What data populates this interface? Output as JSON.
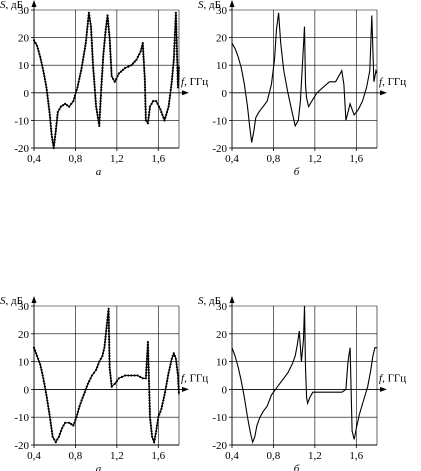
{
  "chart_data": [
    {
      "type": "line",
      "panel_label": "а",
      "ylabel_symbol": "S",
      "ylabel_unit": ", дБ",
      "xlabel_symbol": "f",
      "xlabel_unit": ", ГГц",
      "xlim": [
        0.4,
        1.8
      ],
      "ylim": [
        -20,
        30
      ],
      "xticks": [
        "0,4",
        "0,8",
        "1,2",
        "1,6"
      ],
      "yticks": [
        "30",
        "20",
        "10",
        "0",
        "-10",
        "-20"
      ],
      "grid": true,
      "markers": true,
      "series": [
        {
          "x": [
            0.4,
            0.43,
            0.46,
            0.49,
            0.52,
            0.55,
            0.57,
            0.59,
            0.61,
            0.63,
            0.66,
            0.7,
            0.74,
            0.78,
            0.82,
            0.86,
            0.9,
            0.93,
            0.95,
            0.97,
            1.0,
            1.03,
            1.05,
            1.07,
            1.09,
            1.11,
            1.13,
            1.15,
            1.18,
            1.22,
            1.28,
            1.34,
            1.39,
            1.43,
            1.45,
            1.47,
            1.48,
            1.5,
            1.52,
            1.55,
            1.58,
            1.62,
            1.66,
            1.7,
            1.73,
            1.75,
            1.77,
            1.79,
            1.8
          ],
          "y": [
            19,
            17,
            13,
            8,
            2,
            -7,
            -15,
            -20,
            -14,
            -7,
            -5,
            -4,
            -5,
            -3,
            2,
            9,
            18,
            29,
            24,
            10,
            -5,
            -12,
            2,
            14,
            22,
            28,
            20,
            6,
            4,
            7,
            9,
            10,
            12,
            15,
            18,
            5,
            -10,
            -11,
            -5,
            -3,
            -3,
            -6,
            -10,
            -5,
            4,
            12,
            29,
            2,
            10
          ]
        }
      ]
    },
    {
      "type": "line",
      "panel_label": "б",
      "ylabel_symbol": "S",
      "ylabel_unit": ", дБ",
      "xlabel_symbol": "f",
      "xlabel_unit": ", ГГц",
      "xlim": [
        0.4,
        1.8
      ],
      "ylim": [
        -20,
        30
      ],
      "xticks": [
        "0,4",
        "0,8",
        "1,2",
        "1,6"
      ],
      "yticks": [
        "30",
        "20",
        "10",
        "0",
        "-10",
        "-20"
      ],
      "grid": true,
      "markers": false,
      "series": [
        {
          "x": [
            0.4,
            0.43,
            0.46,
            0.49,
            0.52,
            0.55,
            0.57,
            0.59,
            0.61,
            0.63,
            0.66,
            0.7,
            0.74,
            0.78,
            0.81,
            0.83,
            0.85,
            0.87,
            0.9,
            0.94,
            0.98,
            1.01,
            1.04,
            1.06,
            1.08,
            1.1,
            1.11,
            1.12,
            1.14,
            1.17,
            1.22,
            1.28,
            1.34,
            1.4,
            1.46,
            1.48,
            1.5,
            1.52,
            1.54,
            1.56,
            1.58,
            1.62,
            1.66,
            1.7,
            1.73,
            1.75,
            1.77,
            1.79,
            1.8
          ],
          "y": [
            18,
            16,
            13,
            9,
            3,
            -5,
            -12,
            -18,
            -14,
            -9,
            -7,
            -5,
            -3,
            3,
            12,
            23,
            29,
            18,
            8,
            0,
            -7,
            -12,
            -10,
            -3,
            10,
            24,
            3,
            -2,
            -5,
            -3,
            0,
            2,
            4,
            4,
            8,
            3,
            -10,
            -7,
            -4,
            -6,
            -8,
            -6,
            -3,
            2,
            8,
            28,
            4,
            8,
            7
          ]
        }
      ]
    },
    {
      "type": "line",
      "panel_label": "а",
      "ylabel_symbol": "S",
      "ylabel_unit": ", дБ",
      "xlabel_symbol": "f",
      "xlabel_unit": ", ГГц",
      "xlim": [
        0.4,
        1.8
      ],
      "ylim": [
        -20,
        30
      ],
      "xticks": [
        "0,4",
        "0,8",
        "1,2",
        "1,6"
      ],
      "yticks": [
        "30",
        "20",
        "10",
        "0",
        "-10",
        "-20"
      ],
      "grid": true,
      "markers": true,
      "series": [
        {
          "x": [
            0.4,
            0.43,
            0.46,
            0.49,
            0.52,
            0.55,
            0.58,
            0.61,
            0.64,
            0.67,
            0.7,
            0.74,
            0.78,
            0.81,
            0.84,
            0.88,
            0.92,
            0.96,
            1.0,
            1.03,
            1.06,
            1.08,
            1.1,
            1.12,
            1.13,
            1.15,
            1.18,
            1.22,
            1.28,
            1.34,
            1.4,
            1.45,
            1.48,
            1.5,
            1.52,
            1.54,
            1.56,
            1.58,
            1.6,
            1.63,
            1.66,
            1.7,
            1.73,
            1.75,
            1.77,
            1.79,
            1.8
          ],
          "y": [
            15,
            12,
            9,
            4,
            -2,
            -9,
            -17,
            -19,
            -17,
            -14,
            -12,
            -12,
            -13,
            -10,
            -6,
            -2,
            2,
            5,
            7,
            10,
            12,
            15,
            22,
            29,
            8,
            1,
            2,
            4,
            5,
            5,
            5,
            4,
            4,
            17,
            -10,
            -17,
            -19,
            -15,
            -10,
            -7,
            -2,
            6,
            11,
            13,
            11,
            5,
            -2
          ]
        }
      ]
    },
    {
      "type": "line",
      "panel_label": "б",
      "ylabel_symbol": "S",
      "ylabel_unit": ", дБ",
      "xlabel_symbol": "f",
      "xlabel_unit": ", ГГц",
      "xlim": [
        0.4,
        1.8
      ],
      "ylim": [
        -20,
        30
      ],
      "xticks": [
        "0,4",
        "0,8",
        "1,2",
        "1,6"
      ],
      "yticks": [
        "30",
        "20",
        "10",
        "0",
        "-10",
        "-20"
      ],
      "grid": true,
      "markers": false,
      "series": [
        {
          "x": [
            0.4,
            0.43,
            0.46,
            0.49,
            0.52,
            0.55,
            0.58,
            0.6,
            0.62,
            0.64,
            0.67,
            0.7,
            0.74,
            0.78,
            0.82,
            0.86,
            0.9,
            0.94,
            0.98,
            1.01,
            1.03,
            1.05,
            1.07,
            1.09,
            1.1,
            1.11,
            1.12,
            1.13,
            1.15,
            1.18,
            1.22,
            1.28,
            1.34,
            1.4,
            1.46,
            1.5,
            1.52,
            1.54,
            1.56,
            1.58,
            1.6,
            1.63,
            1.67,
            1.71,
            1.74,
            1.76,
            1.78,
            1.8
          ],
          "y": [
            15,
            12,
            8,
            3,
            -3,
            -10,
            -16,
            -19,
            -17,
            -13,
            -10,
            -8,
            -6,
            -2,
            0,
            2,
            4,
            6,
            9,
            12,
            16,
            21,
            10,
            18,
            30,
            8,
            -3,
            -5,
            -3,
            -1,
            -1,
            -1,
            -1,
            -1,
            -1,
            0,
            10,
            15,
            -15,
            -18,
            -14,
            -9,
            -4,
            1,
            7,
            12,
            15,
            15
          ]
        }
      ]
    }
  ]
}
